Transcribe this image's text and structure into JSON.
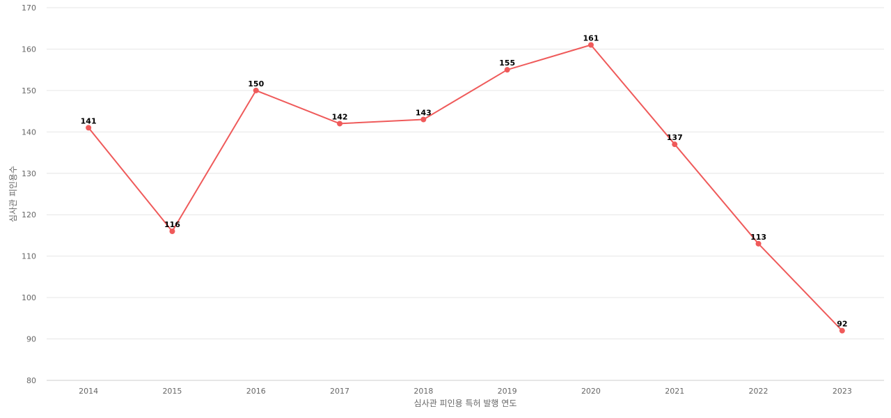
{
  "chart_data": {
    "type": "line",
    "title": "",
    "xlabel": "심사관 피인용 특허 발행 연도",
    "ylabel": "심사관 피인용수",
    "ylim": [
      80,
      170
    ],
    "yticks": [
      80,
      90,
      100,
      110,
      120,
      130,
      140,
      150,
      160,
      170
    ],
    "categories": [
      "2014",
      "2015",
      "2016",
      "2017",
      "2018",
      "2019",
      "2020",
      "2021",
      "2022",
      "2023"
    ],
    "series": [
      {
        "values": [
          141,
          116,
          150,
          142,
          143,
          155,
          161,
          137,
          113,
          92
        ],
        "color": "#ef5a5a"
      }
    ],
    "grid": true,
    "legend": "none"
  }
}
